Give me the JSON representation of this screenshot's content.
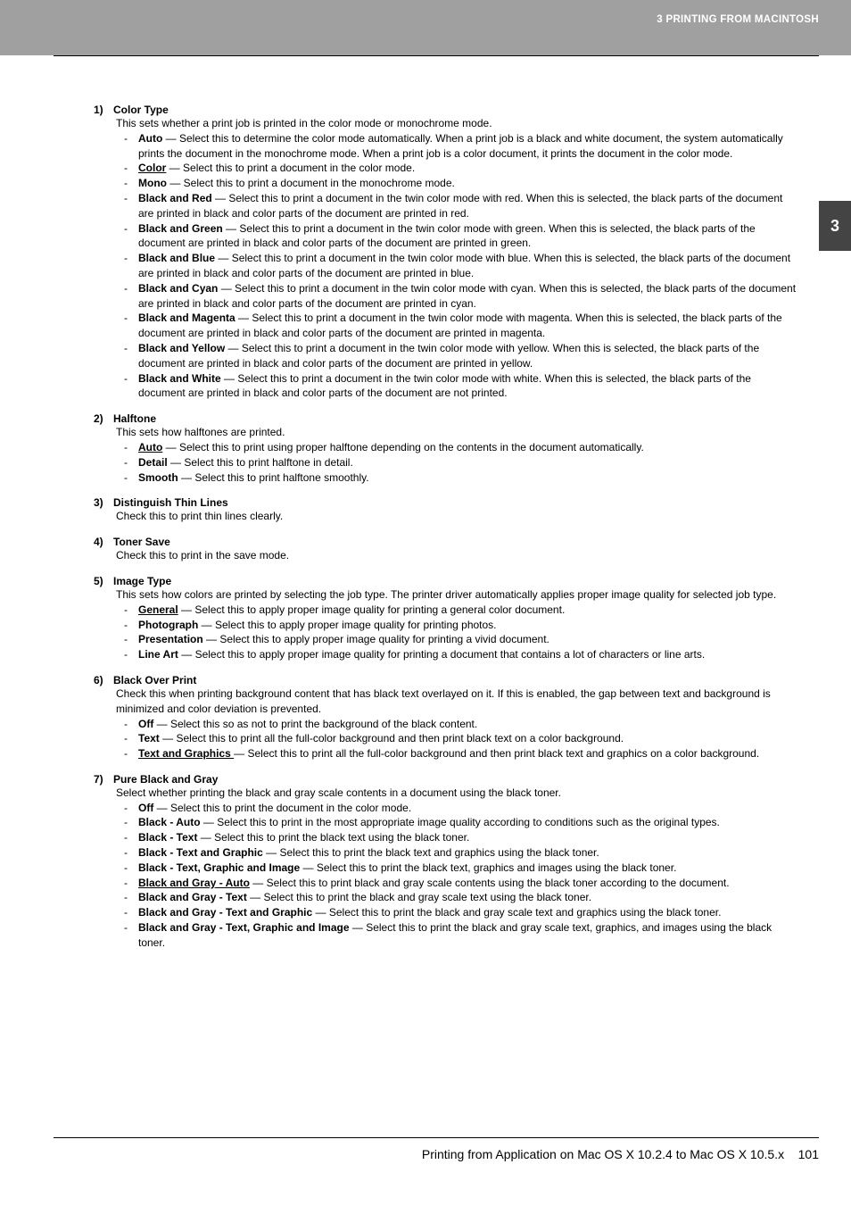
{
  "header": {
    "breadcrumb": "3 PRINTING FROM MACINTOSH"
  },
  "sideTab": "3",
  "footer": {
    "text": "Printing from Application on Mac OS X 10.2.4 to Mac OS X 10.5.x",
    "page": "101"
  },
  "sections": [
    {
      "num": "1)",
      "title": "Color Type",
      "desc": "This sets whether a print job is printed in the color mode or monochrome mode.",
      "opts": [
        {
          "name": "Auto",
          "def": false,
          "text": "Select this to determine the color mode automatically.  When a print job is a black and white document, the system automatically prints the document in the monochrome mode.  When a print job is a color document, it prints the document in the color mode."
        },
        {
          "name": "Color",
          "def": true,
          "text": "Select this to print a document in the color mode."
        },
        {
          "name": "Mono",
          "def": false,
          "text": "Select this to print a document in the monochrome mode."
        },
        {
          "name": "Black and Red",
          "def": false,
          "text": "Select this to print a document in the twin color mode with red.  When this is selected, the black parts of the document are printed in black and color parts of the document are printed in red."
        },
        {
          "name": "Black and Green",
          "def": false,
          "text": "Select this to print a document in the twin color mode with green.  When this is selected, the black parts of the document are printed in black and color parts of the document are printed in green."
        },
        {
          "name": "Black and Blue",
          "def": false,
          "text": "Select this to print a document in the twin color mode with blue.  When this is selected, the black parts of the document are printed in black and color parts of the document are printed in blue."
        },
        {
          "name": "Black and Cyan",
          "def": false,
          "text": "Select this to print a document in the twin color mode with cyan.  When this is selected, the black parts of the document are printed in black and color parts of the document are printed in cyan."
        },
        {
          "name": "Black and Magenta",
          "def": false,
          "text": "Select this to print a document in the twin color mode with magenta.  When this is selected, the black parts of the document are printed in black and color parts of the document are printed in magenta."
        },
        {
          "name": "Black and Yellow",
          "def": false,
          "text": "Select this to print a document in the twin color mode with yellow.  When this is selected, the black parts of the document are printed in black and color parts of the document are printed in yellow."
        },
        {
          "name": "Black and White",
          "def": false,
          "text": "Select this to print a document in the twin color mode with white.  When this is selected, the black parts of the document are printed in black and color parts of the document are not printed."
        }
      ]
    },
    {
      "num": "2)",
      "title": "Halftone",
      "desc": "This sets how halftones are printed.",
      "opts": [
        {
          "name": "Auto",
          "def": true,
          "text": "Select this to print using proper halftone depending on the contents in the document automatically."
        },
        {
          "name": "Detail",
          "def": false,
          "text": "Select this to print halftone in detail."
        },
        {
          "name": "Smooth",
          "def": false,
          "text": "Select this to print halftone smoothly."
        }
      ]
    },
    {
      "num": "3)",
      "title": "Distinguish Thin Lines",
      "desc": "Check this to print thin lines clearly.",
      "opts": []
    },
    {
      "num": "4)",
      "title": "Toner Save",
      "desc": "Check this to print in the save mode.",
      "opts": []
    },
    {
      "num": "5)",
      "title": "Image Type",
      "desc": "This sets how colors are printed by selecting the job type.  The printer driver automatically applies proper image quality for selected job type.",
      "opts": [
        {
          "name": "General",
          "def": true,
          "text": "Select this to apply proper image quality for printing a general color document."
        },
        {
          "name": "Photograph",
          "def": false,
          "text": "Select this to apply proper image quality for printing photos."
        },
        {
          "name": "Presentation",
          "def": false,
          "text": "Select this to apply proper image quality for printing a vivid document."
        },
        {
          "name": "Line Art",
          "def": false,
          "text": "Select this to apply proper image quality for printing a document that contains a lot of characters or line arts."
        }
      ]
    },
    {
      "num": "6)",
      "title": "Black Over Print",
      "desc": "Check this when printing background content that has black text overlayed on it.  If this is enabled, the gap between text and background is minimized and color deviation is prevented.",
      "opts": [
        {
          "name": "Off",
          "def": false,
          "text": "Select this so as not to print the background of the black content."
        },
        {
          "name": "Text",
          "def": false,
          "text": "Select this to print all the full-color background and then print black text on a color background."
        },
        {
          "name": "Text and Graphics ",
          "def": true,
          "text": "Select this to print all the full-color background and then print black text and graphics on a color background."
        }
      ]
    },
    {
      "num": "7)",
      "title": "Pure Black and Gray",
      "desc": "Select whether printing the black and gray scale contents in a document using the black toner.",
      "opts": [
        {
          "name": "Off",
          "def": false,
          "text": "Select this to print the document in the color mode."
        },
        {
          "name": "Black - Auto",
          "def": false,
          "text": "Select this to print in the most appropriate image quality according to conditions such as the original types."
        },
        {
          "name": "Black - Text",
          "def": false,
          "text": "Select this to print the black text using the black toner."
        },
        {
          "name": "Black - Text and Graphic",
          "def": false,
          "text": "Select this to print the black text and graphics using the black toner."
        },
        {
          "name": "Black - Text, Graphic and Image ",
          "def": false,
          "text": "Select this to print the black text, graphics and images using the black toner."
        },
        {
          "name": "Black and Gray - Auto",
          "def": true,
          "text": "Select this to print black and gray scale contents using the black toner according to the document."
        },
        {
          "name": "Black and Gray - Text",
          "def": false,
          "text": "Select this to print the black and gray scale text using the black toner."
        },
        {
          "name": "Black and Gray - Text and Graphic",
          "def": false,
          "text": "Select this to print the black and gray scale text and graphics using the black toner."
        },
        {
          "name": "Black and Gray - Text, Graphic and Image",
          "def": false,
          "text": "Select this to print the black and gray scale text, graphics, and images using the black toner."
        }
      ]
    }
  ]
}
